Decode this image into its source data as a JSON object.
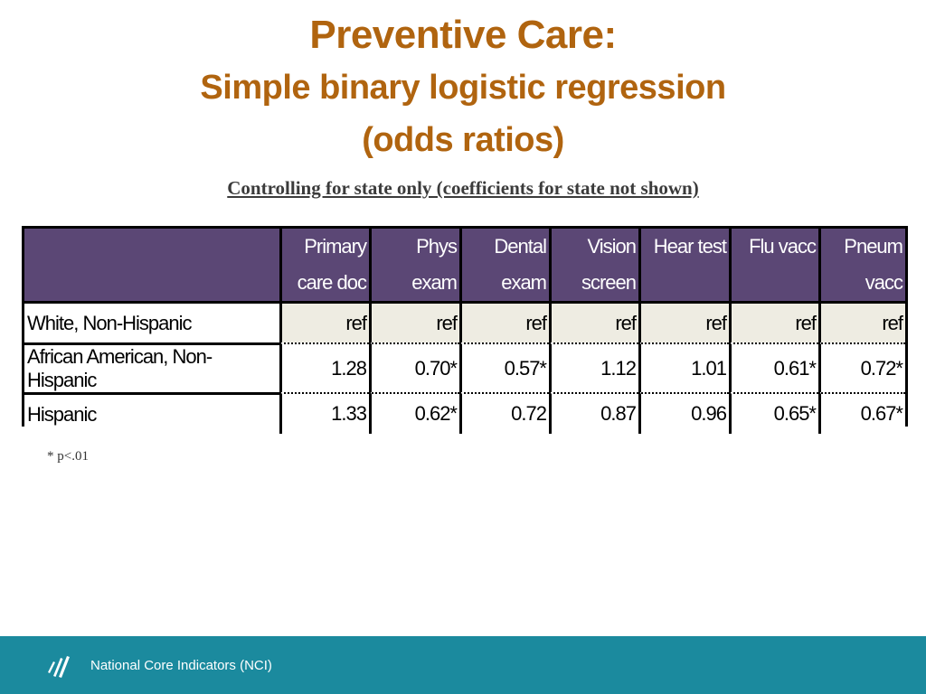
{
  "title": {
    "line1": "Preventive Care:",
    "line2": "Simple binary logistic regression",
    "line3": "(odds ratios)"
  },
  "subtitle": "Controlling for state only (coefficients for state not shown)",
  "table": {
    "columns": [
      {
        "line1": "Primary",
        "line2": "care doc"
      },
      {
        "line1": "Phys",
        "line2": "exam"
      },
      {
        "line1": "Dental",
        "line2": "exam"
      },
      {
        "line1": "Vision",
        "line2": "screen"
      },
      {
        "line1": "Hear test",
        "line2": ""
      },
      {
        "line1": "Flu vacc",
        "line2": ""
      },
      {
        "line1": "Pneum",
        "line2": "vacc"
      }
    ],
    "rows": [
      {
        "label": "White, Non-Hispanic",
        "values": [
          "ref",
          "ref",
          "ref",
          "ref",
          "ref",
          "ref",
          "ref"
        ]
      },
      {
        "label": "African American, Non-Hispanic",
        "values": [
          "1.28",
          "0.70*",
          "0.57*",
          "1.12",
          "1.01",
          "0.61*",
          "0.72*"
        ]
      },
      {
        "label": "Hispanic",
        "values": [
          "1.33",
          "0.62*",
          "0.72",
          "0.87",
          "0.96",
          "0.65*",
          "0.67*"
        ]
      }
    ]
  },
  "footnote": "* p<.01",
  "footer": {
    "org": "National Core Indicators (NCI)",
    "logo_icon": "nci-logo-icon"
  },
  "colors": {
    "title": "#b0640f",
    "header_bg": "#5b4775",
    "ref_bg": "#eeece2",
    "footer_bg": "#1b8a9e"
  }
}
